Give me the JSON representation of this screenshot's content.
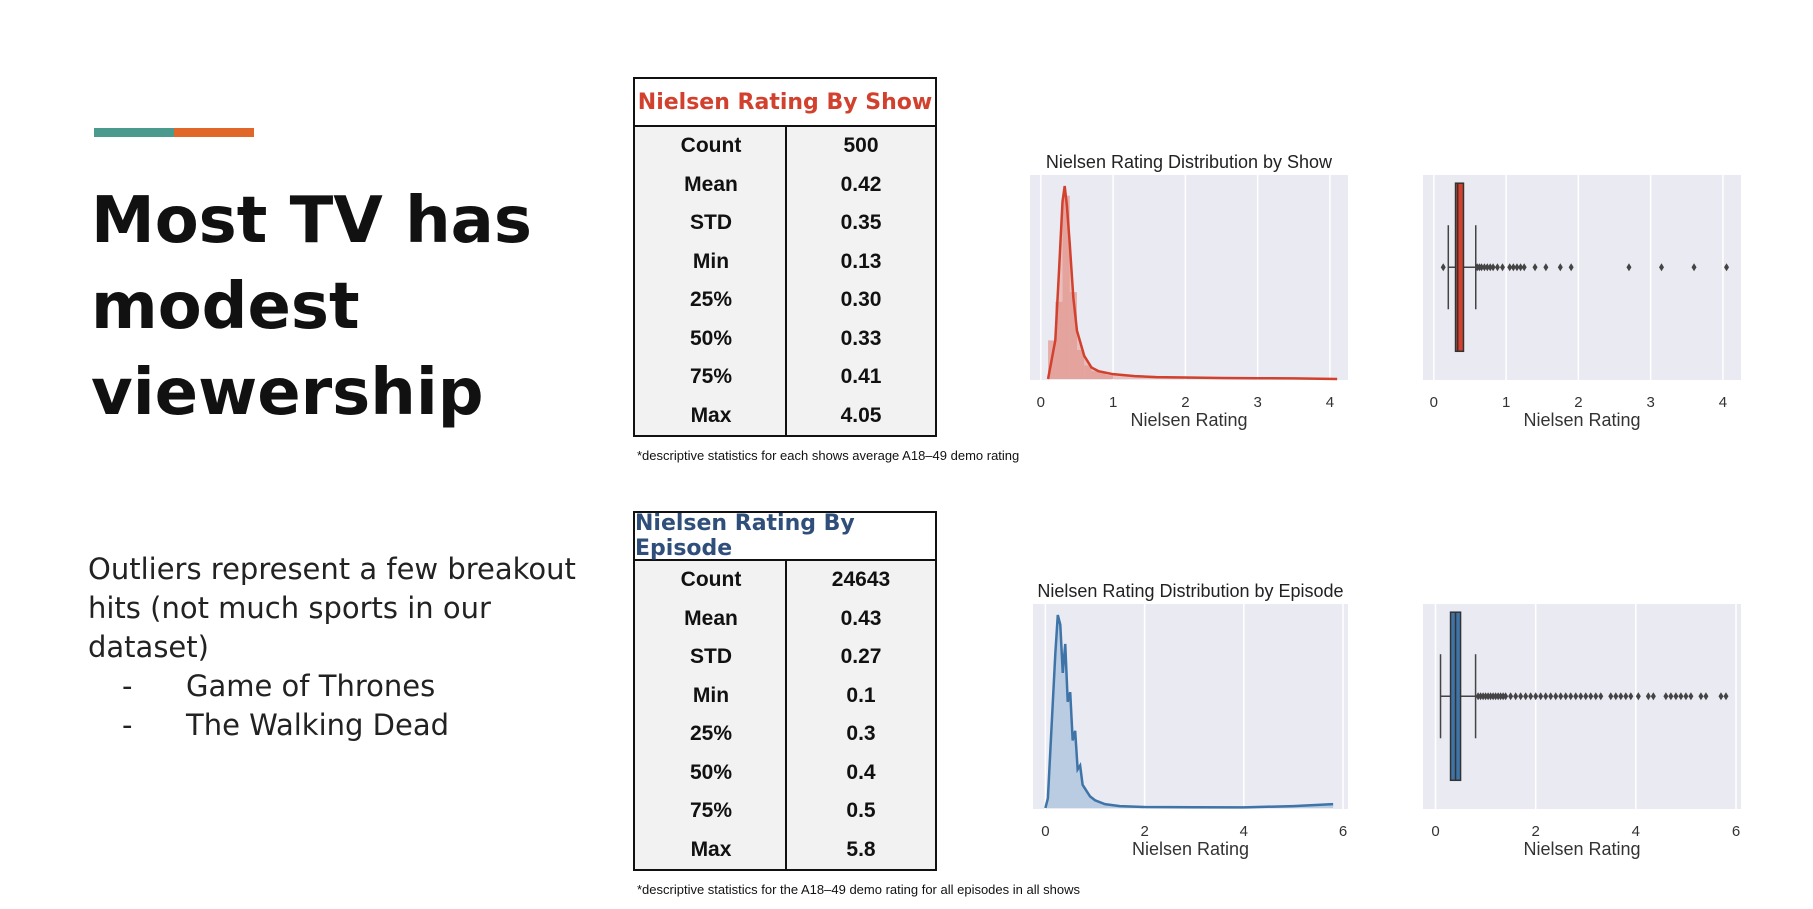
{
  "slide": {
    "title_lines": [
      "Most TV has",
      "modest",
      "viewership"
    ],
    "body": "Outliers represent a few breakout hits (not much sports in our dataset)",
    "bullets": [
      {
        "dash": "-",
        "text": "Game of Thrones"
      },
      {
        "dash": "-",
        "text": "The Walking Dead"
      }
    ],
    "accent_colors": {
      "teal": "#4a9b8e",
      "orange": "#e0662a"
    }
  },
  "show_stats": {
    "title": "Nielsen Rating By Show",
    "title_color": "#d2412e",
    "rows": [
      {
        "k": "Count",
        "v": "500"
      },
      {
        "k": "Mean",
        "v": "0.42"
      },
      {
        "k": "STD",
        "v": "0.35"
      },
      {
        "k": "Min",
        "v": "0.13"
      },
      {
        "k": "25%",
        "v": "0.30"
      },
      {
        "k": "50%",
        "v": "0.33"
      },
      {
        "k": "75%",
        "v": "0.41"
      },
      {
        "k": "Max",
        "v": "4.05"
      }
    ],
    "footnote": "*descriptive statistics for each shows average A18–49 demo rating"
  },
  "episode_stats": {
    "title": "Nielsen Rating By Episode",
    "title_color": "#2f4f7a",
    "rows": [
      {
        "k": "Count",
        "v": "24643"
      },
      {
        "k": "Mean",
        "v": "0.43"
      },
      {
        "k": "STD",
        "v": "0.27"
      },
      {
        "k": "Min",
        "v": "0.1"
      },
      {
        "k": "25%",
        "v": "0.3"
      },
      {
        "k": "50%",
        "v": "0.4"
      },
      {
        "k": "75%",
        "v": "0.5"
      },
      {
        "k": "Max",
        "v": "5.8"
      }
    ],
    "footnote": "*descriptive statistics for the A18–49 demo rating for all episodes in all shows"
  },
  "chart_data": [
    {
      "id": "show-dist",
      "type": "area",
      "title": "Nielsen Rating Distribution by Show",
      "xlabel": "Nielsen Rating",
      "ylabel": "",
      "xlim": [
        -0.15,
        4.25
      ],
      "ylim": [
        0,
        1
      ],
      "xticks": [
        0,
        1,
        2,
        3,
        4
      ],
      "grid": true,
      "color": "#d2412e",
      "fill": "#e39a92",
      "density_x": [
        0.1,
        0.2,
        0.25,
        0.3,
        0.33,
        0.36,
        0.4,
        0.45,
        0.5,
        0.6,
        0.7,
        0.8,
        1.0,
        1.3,
        1.6,
        2.0,
        2.5,
        3.0,
        3.5,
        4.1
      ],
      "density_y": [
        0.0,
        0.2,
        0.55,
        0.92,
        1.0,
        0.9,
        0.7,
        0.42,
        0.25,
        0.12,
        0.06,
        0.04,
        0.025,
        0.015,
        0.01,
        0.008,
        0.005,
        0.004,
        0.003,
        0.0
      ],
      "hist_bin_edges": [
        0.1,
        0.2,
        0.3,
        0.4,
        0.5,
        0.6,
        0.7,
        0.8,
        0.9,
        1.0
      ],
      "hist_counts": [
        0.2,
        0.4,
        0.95,
        0.45,
        0.15,
        0.07,
        0.04,
        0.03,
        0.02
      ]
    },
    {
      "id": "show-box",
      "type": "box",
      "title": "",
      "xlabel": "Nielsen Rating",
      "xlim": [
        -0.15,
        4.25
      ],
      "xticks": [
        0,
        1,
        2,
        3,
        4
      ],
      "grid": true,
      "color": "#d2412e",
      "whisker_low": 0.2,
      "q1": 0.3,
      "median": 0.33,
      "q3": 0.41,
      "whisker_high": 0.58,
      "outliers": [
        0.13,
        0.6,
        0.63,
        0.66,
        0.7,
        0.74,
        0.78,
        0.82,
        0.88,
        0.95,
        1.05,
        1.1,
        1.15,
        1.2,
        1.25,
        1.4,
        1.55,
        1.75,
        1.9,
        2.7,
        3.15,
        3.6,
        4.05
      ]
    },
    {
      "id": "episode-dist",
      "type": "area",
      "title": "Nielsen Rating Distribution by Episode",
      "xlabel": "Nielsen Rating",
      "ylabel": "",
      "xlim": [
        -0.25,
        6.1
      ],
      "ylim": [
        0,
        1
      ],
      "xticks": [
        0,
        2,
        4,
        6
      ],
      "grid": true,
      "color": "#3f74a8",
      "fill": "#8fb2d3",
      "density_x": [
        0.0,
        0.05,
        0.1,
        0.15,
        0.2,
        0.25,
        0.3,
        0.35,
        0.4,
        0.45,
        0.5,
        0.55,
        0.6,
        0.65,
        0.7,
        0.75,
        0.8,
        0.9,
        1.0,
        1.2,
        1.5,
        2.0,
        3.0,
        4.0,
        5.0,
        5.8
      ],
      "density_y": [
        0.0,
        0.05,
        0.3,
        0.55,
        0.8,
        1.0,
        0.95,
        0.7,
        0.85,
        0.55,
        0.6,
        0.35,
        0.4,
        0.2,
        0.22,
        0.12,
        0.1,
        0.06,
        0.04,
        0.02,
        0.01,
        0.005,
        0.004,
        0.003,
        0.01,
        0.02
      ],
      "hist_bin_edges": [],
      "hist_counts": []
    },
    {
      "id": "episode-box",
      "type": "box",
      "title": "",
      "xlabel": "Nielsen Rating",
      "xlim": [
        -0.25,
        6.1
      ],
      "xticks": [
        0,
        2,
        4,
        6
      ],
      "grid": true,
      "color": "#3f74a8",
      "whisker_low": 0.1,
      "q1": 0.3,
      "median": 0.4,
      "q3": 0.5,
      "whisker_high": 0.8,
      "outliers": [
        0.85,
        0.9,
        0.95,
        1.0,
        1.05,
        1.1,
        1.15,
        1.2,
        1.25,
        1.3,
        1.35,
        1.4,
        1.5,
        1.6,
        1.7,
        1.8,
        1.9,
        2.0,
        2.1,
        2.2,
        2.3,
        2.4,
        2.5,
        2.6,
        2.7,
        2.8,
        2.9,
        3.0,
        3.1,
        3.2,
        3.3,
        3.5,
        3.6,
        3.7,
        3.8,
        3.9,
        4.05,
        4.25,
        4.35,
        4.6,
        4.7,
        4.8,
        4.9,
        5.0,
        5.1,
        5.3,
        5.4,
        5.7,
        5.8
      ]
    }
  ]
}
